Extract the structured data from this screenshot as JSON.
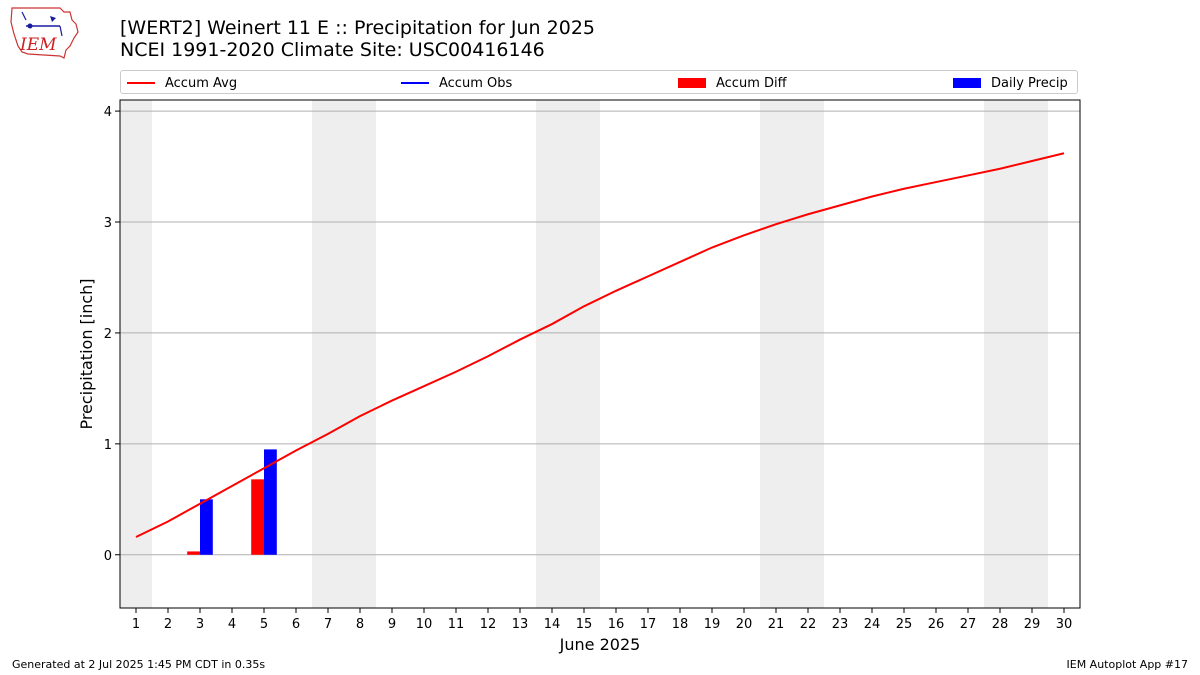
{
  "header": {
    "title": "[WERT2] Weinert  11 E :: Precipitation for Jun 2025",
    "subtitle": "NCEI 1991-2020 Climate Site: USC00416146",
    "logo_text": "IEM"
  },
  "legend": {
    "items": [
      {
        "label": "Accum Avg",
        "color": "#ff0000",
        "kind": "line"
      },
      {
        "label": "Accum Obs",
        "color": "#0000ff",
        "kind": "line"
      },
      {
        "label": "Accum Diff",
        "color": "#ff0000",
        "kind": "box"
      },
      {
        "label": "Daily Precip",
        "color": "#0000ff",
        "kind": "box"
      }
    ]
  },
  "footer": {
    "left": "Generated at 2 Jul 2025 1:45 PM CDT in 0.35s",
    "right": "IEM Autoplot App #17"
  },
  "chart_data": {
    "type": "bar",
    "xlabel": "June 2025",
    "ylabel": "Precipitation [inch]",
    "xlim": [
      0.5,
      30.5
    ],
    "ylim": [
      -0.48,
      4.1
    ],
    "yticks": [
      0,
      1,
      2,
      3,
      4
    ],
    "categories": [
      1,
      2,
      3,
      4,
      5,
      6,
      7,
      8,
      9,
      10,
      11,
      12,
      13,
      14,
      15,
      16,
      17,
      18,
      19,
      20,
      21,
      22,
      23,
      24,
      25,
      26,
      27,
      28,
      29,
      30
    ],
    "weekend_bands": [
      [
        0.5,
        1.5
      ],
      [
        6.5,
        8.5
      ],
      [
        13.5,
        15.5
      ],
      [
        20.5,
        22.5
      ],
      [
        27.5,
        29.5
      ]
    ],
    "grid": "horizontal",
    "legend_position": "top",
    "series": [
      {
        "name": "Accum Avg",
        "kind": "line",
        "color": "#ff0000",
        "values": [
          0.16,
          0.3,
          0.46,
          0.62,
          0.78,
          0.94,
          1.09,
          1.25,
          1.39,
          1.52,
          1.65,
          1.79,
          1.94,
          2.08,
          2.24,
          2.38,
          2.51,
          2.64,
          2.77,
          2.88,
          2.98,
          3.07,
          3.15,
          3.23,
          3.3,
          3.36,
          3.42,
          3.48,
          3.55,
          3.62
        ]
      },
      {
        "name": "Accum Diff",
        "kind": "bar",
        "color": "#ff0000",
        "points": [
          {
            "x": 3,
            "y": 0.03
          },
          {
            "x": 5,
            "y": 0.68
          }
        ]
      },
      {
        "name": "Daily Precip",
        "kind": "bar",
        "color": "#0000ff",
        "points": [
          {
            "x": 3,
            "y": 0.5
          },
          {
            "x": 5,
            "y": 0.95
          }
        ]
      }
    ]
  }
}
